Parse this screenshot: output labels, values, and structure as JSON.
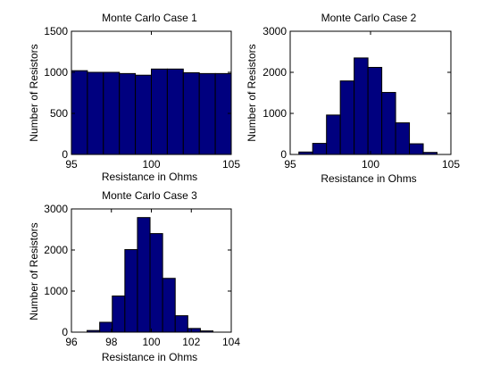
{
  "figure": {
    "bar_fill": "#00007f",
    "bar_edge": "#000000",
    "background": "#ffffff"
  },
  "chart_data": [
    {
      "type": "bar",
      "title": "Monte Carlo Case 1",
      "xlabel": "Resistance in Ohms",
      "ylabel": "Number of Resistors",
      "xlim": [
        95,
        105
      ],
      "ylim": [
        0,
        1500
      ],
      "xticks": [
        95,
        100,
        105
      ],
      "yticks": [
        0,
        500,
        1000,
        1500
      ],
      "bin_width": 1,
      "bin_centers": [
        95.5,
        96.5,
        97.5,
        98.5,
        99.5,
        100.5,
        101.5,
        102.5,
        103.5,
        104.5
      ],
      "values": [
        1020,
        1000,
        1000,
        985,
        965,
        1040,
        1040,
        995,
        985,
        985
      ]
    },
    {
      "type": "bar",
      "title": "Monte Carlo Case 2",
      "xlabel": "Resistance in Ohms",
      "ylabel": "Number of Resistors",
      "xlim": [
        95,
        105
      ],
      "ylim": [
        0,
        3000
      ],
      "xticks": [
        95,
        100,
        105
      ],
      "yticks": [
        0,
        1000,
        2000,
        3000
      ],
      "bin_width": 0.86,
      "bin_centers": [
        95.97,
        96.83,
        97.69,
        98.55,
        99.41,
        100.27,
        101.13,
        101.99,
        102.85,
        103.71
      ],
      "values": [
        60,
        270,
        960,
        1790,
        2350,
        2120,
        1510,
        770,
        260,
        50
      ]
    },
    {
      "type": "bar",
      "title": "Monte Carlo Case 3",
      "xlabel": "Resistance in Ohms",
      "ylabel": "Number of Resistors",
      "xlim": [
        96,
        104
      ],
      "ylim": [
        0,
        3000
      ],
      "xticks": [
        96,
        98,
        100,
        102,
        104
      ],
      "yticks": [
        0,
        1000,
        2000,
        3000
      ],
      "bin_width": 0.63,
      "bin_centers": [
        97.1,
        97.73,
        98.36,
        98.99,
        99.62,
        100.25,
        100.88,
        101.51,
        102.14,
        102.77
      ],
      "values": [
        40,
        240,
        880,
        2010,
        2790,
        2400,
        1310,
        400,
        90,
        30
      ]
    }
  ]
}
